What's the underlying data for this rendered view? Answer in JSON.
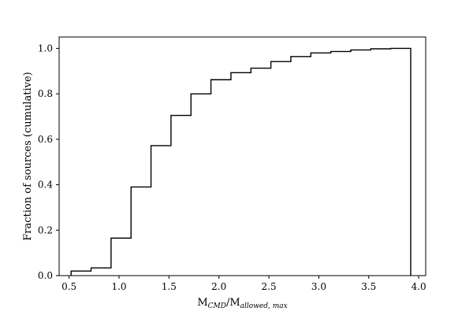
{
  "chart_data": {
    "type": "line",
    "subtype": "cumulative step histogram",
    "title": "",
    "xlabel": {
      "base": "M",
      "sub1": "CMD",
      "slash": "/M",
      "sub2": "allowed, max"
    },
    "ylabel": "Fraction of sources (cumulative)",
    "xlim": [
      0.4,
      4.07
    ],
    "ylim": [
      0.0,
      1.05
    ],
    "x_ticks": [
      {
        "value": 0.5,
        "label": "0.5"
      },
      {
        "value": 1.0,
        "label": "1.0"
      },
      {
        "value": 1.5,
        "label": "1.5"
      },
      {
        "value": 2.0,
        "label": "2.0"
      },
      {
        "value": 2.5,
        "label": "2.5"
      },
      {
        "value": 3.0,
        "label": "3.0"
      },
      {
        "value": 3.5,
        "label": "3.5"
      },
      {
        "value": 4.0,
        "label": "4.0"
      }
    ],
    "y_ticks": [
      {
        "value": 0.0,
        "label": "0.0"
      },
      {
        "value": 0.2,
        "label": "0.2"
      },
      {
        "value": 0.4,
        "label": "0.4"
      },
      {
        "value": 0.6,
        "label": "0.6"
      },
      {
        "value": 0.8,
        "label": "0.8"
      },
      {
        "value": 1.0,
        "label": "1.0"
      }
    ],
    "bin_edges": [
      0.52,
      0.72,
      0.92,
      1.12,
      1.32,
      1.52,
      1.72,
      1.92,
      2.12,
      2.32,
      2.52,
      2.72,
      2.92,
      3.12,
      3.32,
      3.52,
      3.72,
      3.92
    ],
    "cumulative_values": [
      0.02,
      0.034,
      0.165,
      0.39,
      0.572,
      0.705,
      0.8,
      0.862,
      0.893,
      0.913,
      0.942,
      0.964,
      0.98,
      0.986,
      0.993,
      0.998,
      1.0
    ],
    "line_color": "#000000",
    "grid": false,
    "legend": "none"
  }
}
